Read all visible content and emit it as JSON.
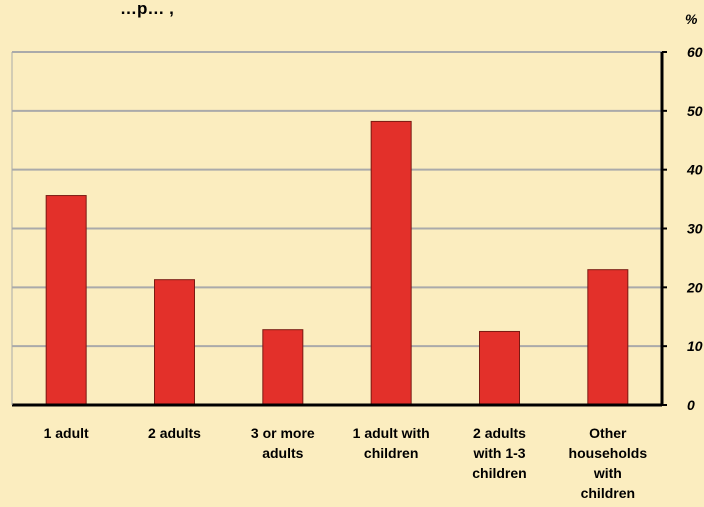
{
  "chart_data": {
    "type": "bar",
    "title": "…p…  ,",
    "unit_label": "%",
    "categories": [
      [
        "1 adult"
      ],
      [
        "2 adults"
      ],
      [
        "3 or more",
        "adults"
      ],
      [
        "1 adult with",
        "children"
      ],
      [
        "2 adults",
        "with 1-3",
        "children"
      ],
      [
        "Other",
        "households",
        "with",
        "children"
      ]
    ],
    "values": [
      35.6,
      21.3,
      12.8,
      48.2,
      12.5,
      23.0
    ],
    "ylim": [
      0,
      60
    ],
    "yticks": [
      0,
      10,
      20,
      30,
      40,
      50,
      60
    ],
    "y_axis_position": "right",
    "grid": true,
    "legend": "none",
    "colors": {
      "background": "#fbedbf",
      "bar": "#e3302a",
      "bar_edge": "#7a1a12",
      "grid": "#aaaaaa",
      "axis": "#000000"
    }
  }
}
